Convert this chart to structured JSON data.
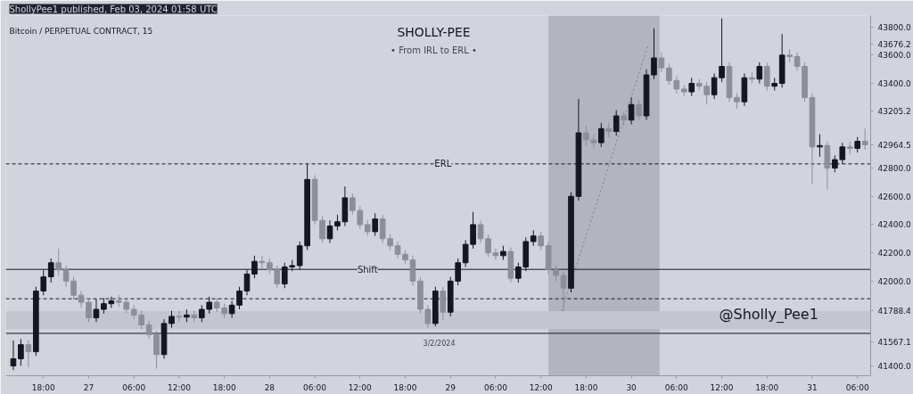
{
  "chart_data": {
    "type": "candlestick",
    "title": "SHOLLY-PEE",
    "subtitle": "• From IRL to ERL •",
    "annotations": [
      "ShollyPee1 published, Feb 03, 2024 01:58 UTC",
      "Bitcoin / PERPETUAL CONTRACT, 15",
      "3/2/2024",
      "@Sholly_Pee1"
    ],
    "x": [
      "2024-01-26T14:00",
      "2024-01-26T15:00",
      "2024-01-26T16:00",
      "2024-01-26T17:00",
      "2024-01-26T18:00",
      "2024-01-26T19:00",
      "2024-01-26T20:00",
      "2024-01-26T21:00",
      "2024-01-26T22:00",
      "2024-01-26T23:00",
      "2024-01-27T00:00",
      "2024-01-27T01:00",
      "2024-01-27T02:00",
      "2024-01-27T03:00",
      "2024-01-27T04:00",
      "2024-01-27T05:00",
      "2024-01-27T06:00",
      "2024-01-27T07:00",
      "2024-01-27T08:00",
      "2024-01-27T09:00",
      "2024-01-27T10:00",
      "2024-01-27T11:00",
      "2024-01-27T12:00",
      "2024-01-27T13:00",
      "2024-01-27T14:00",
      "2024-01-27T15:00",
      "2024-01-27T16:00",
      "2024-01-27T17:00",
      "2024-01-27T18:00",
      "2024-01-27T19:00",
      "2024-01-27T20:00",
      "2024-01-27T21:00",
      "2024-01-27T22:00",
      "2024-01-27T23:00",
      "2024-01-28T00:00",
      "2024-01-28T01:00",
      "2024-01-28T02:00",
      "2024-01-28T03:00",
      "2024-01-28T04:00",
      "2024-01-28T05:00",
      "2024-01-28T06:00",
      "2024-01-28T07:00",
      "2024-01-28T08:00",
      "2024-01-28T09:00",
      "2024-01-28T10:00",
      "2024-01-28T11:00",
      "2024-01-28T12:00",
      "2024-01-28T13:00",
      "2024-01-28T14:00",
      "2024-01-28T15:00",
      "2024-01-28T16:00",
      "2024-01-28T17:00",
      "2024-01-28T18:00",
      "2024-01-28T19:00",
      "2024-01-28T20:00",
      "2024-01-28T21:00",
      "2024-01-28T22:00",
      "2024-01-28T23:00",
      "2024-01-29T00:00",
      "2024-01-29T01:00",
      "2024-01-29T02:00",
      "2024-01-29T03:00",
      "2024-01-29T04:00",
      "2024-01-29T05:00",
      "2024-01-29T06:00",
      "2024-01-29T07:00",
      "2024-01-29T08:00",
      "2024-01-29T09:00",
      "2024-01-29T10:00",
      "2024-01-29T11:00",
      "2024-01-29T12:00",
      "2024-01-29T13:00",
      "2024-01-29T14:00",
      "2024-01-29T15:00",
      "2024-01-29T16:00",
      "2024-01-29T17:00",
      "2024-01-29T18:00",
      "2024-01-29T19:00",
      "2024-01-29T20:00",
      "2024-01-29T21:00",
      "2024-01-29T22:00",
      "2024-01-29T23:00",
      "2024-01-30T00:00",
      "2024-01-30T01:00",
      "2024-01-30T02:00",
      "2024-01-30T03:00",
      "2024-01-30T04:00",
      "2024-01-30T05:00",
      "2024-01-30T06:00",
      "2024-01-30T07:00",
      "2024-01-30T08:00",
      "2024-01-30T09:00",
      "2024-01-30T10:00",
      "2024-01-30T11:00",
      "2024-01-30T12:00",
      "2024-01-30T13:00",
      "2024-01-30T14:00",
      "2024-01-30T15:00",
      "2024-01-30T16:00",
      "2024-01-30T17:00",
      "2024-01-30T18:00",
      "2024-01-30T19:00",
      "2024-01-30T20:00",
      "2024-01-30T21:00",
      "2024-01-30T22:00",
      "2024-01-30T23:00",
      "2024-01-31T00:00",
      "2024-01-31T01:00",
      "2024-01-31T02:00",
      "2024-01-31T03:00",
      "2024-01-31T04:00",
      "2024-01-31T05:00",
      "2024-01-31T06:00",
      "2024-01-31T07:00"
    ],
    "ohlc": [
      [
        41400,
        41580,
        41370,
        41450
      ],
      [
        41450,
        41590,
        41400,
        41550
      ],
      [
        41550,
        41580,
        41390,
        41500
      ],
      [
        41500,
        41960,
        41470,
        41930
      ],
      [
        41930,
        42080,
        41900,
        42030
      ],
      [
        42030,
        42160,
        41990,
        42130
      ],
      [
        42130,
        42230,
        42040,
        42080
      ],
      [
        42080,
        42110,
        41960,
        42000
      ],
      [
        42000,
        42030,
        41870,
        41900
      ],
      [
        41900,
        41930,
        41810,
        41850
      ],
      [
        41850,
        41880,
        41710,
        41740
      ],
      [
        41740,
        41870,
        41710,
        41800
      ],
      [
        41800,
        41880,
        41770,
        41840
      ],
      [
        41840,
        41890,
        41810,
        41860
      ],
      [
        41860,
        41900,
        41820,
        41850
      ],
      [
        41850,
        41880,
        41770,
        41800
      ],
      [
        41800,
        41830,
        41730,
        41760
      ],
      [
        41760,
        41790,
        41660,
        41690
      ],
      [
        41690,
        41720,
        41590,
        41620
      ],
      [
        41620,
        41650,
        41380,
        41480
      ],
      [
        41480,
        41730,
        41450,
        41700
      ],
      [
        41700,
        41790,
        41670,
        41750
      ],
      [
        41750,
        41790,
        41710,
        41745
      ],
      [
        41745,
        41800,
        41710,
        41760
      ],
      [
        41760,
        41790,
        41710,
        41740
      ],
      [
        41740,
        41830,
        41710,
        41800
      ],
      [
        41800,
        41890,
        41770,
        41850
      ],
      [
        41850,
        41880,
        41780,
        41810
      ],
      [
        41810,
        41840,
        41740,
        41770
      ],
      [
        41770,
        41860,
        41740,
        41830
      ],
      [
        41830,
        41960,
        41800,
        41930
      ],
      [
        41930,
        42080,
        41900,
        42050
      ],
      [
        42050,
        42180,
        42020,
        42140
      ],
      [
        42140,
        42180,
        42090,
        42130
      ],
      [
        42130,
        42160,
        42050,
        42080
      ],
      [
        42080,
        42110,
        41950,
        41980
      ],
      [
        41980,
        42130,
        41950,
        42100
      ],
      [
        42100,
        42150,
        42070,
        42110
      ],
      [
        42110,
        42280,
        42080,
        42250
      ],
      [
        42250,
        42830,
        42220,
        42720
      ],
      [
        42720,
        42750,
        42400,
        42430
      ],
      [
        42430,
        42460,
        42270,
        42300
      ],
      [
        42300,
        42430,
        42270,
        42390
      ],
      [
        42390,
        42470,
        42360,
        42420
      ],
      [
        42420,
        42670,
        42390,
        42590
      ],
      [
        42590,
        42620,
        42470,
        42500
      ],
      [
        42500,
        42530,
        42370,
        42400
      ],
      [
        42400,
        42430,
        42320,
        42350
      ],
      [
        42350,
        42480,
        42320,
        42440
      ],
      [
        42440,
        42470,
        42270,
        42300
      ],
      [
        42300,
        42330,
        42220,
        42250
      ],
      [
        42250,
        42280,
        42160,
        42190
      ],
      [
        42190,
        42220,
        42120,
        42150
      ],
      [
        42150,
        42180,
        41970,
        42000
      ],
      [
        42000,
        42030,
        41770,
        41800
      ],
      [
        41800,
        41830,
        41670,
        41700
      ],
      [
        41700,
        41960,
        41680,
        41930
      ],
      [
        41930,
        41960,
        41720,
        41780
      ],
      [
        41780,
        42030,
        41750,
        42000
      ],
      [
        42000,
        42160,
        41970,
        42130
      ],
      [
        42130,
        42290,
        42100,
        42260
      ],
      [
        42260,
        42490,
        42230,
        42400
      ],
      [
        42400,
        42430,
        42270,
        42300
      ],
      [
        42300,
        42330,
        42170,
        42200
      ],
      [
        42200,
        42230,
        42150,
        42180
      ],
      [
        42180,
        42250,
        42150,
        42210
      ],
      [
        42210,
        42240,
        41990,
        42020
      ],
      [
        42020,
        42130,
        41990,
        42100
      ],
      [
        42100,
        42310,
        42070,
        42280
      ],
      [
        42280,
        42360,
        42250,
        42320
      ],
      [
        42320,
        42350,
        42220,
        42250
      ],
      [
        42250,
        42280,
        42050,
        42080
      ],
      [
        42080,
        42110,
        42000,
        42040
      ],
      [
        42040,
        42070,
        41788.4,
        41950
      ],
      [
        41950,
        42630,
        41920,
        42600
      ],
      [
        42600,
        43290,
        42570,
        43050
      ],
      [
        43050,
        43100,
        42960,
        43000
      ],
      [
        43000,
        43040,
        42940,
        42980
      ],
      [
        42980,
        43120,
        42950,
        43080
      ],
      [
        43080,
        43120,
        43020,
        43060
      ],
      [
        43060,
        43210,
        43030,
        43170
      ],
      [
        43170,
        43200,
        43100,
        43140
      ],
      [
        43140,
        43300,
        43110,
        43250
      ],
      [
        43250,
        43280,
        43140,
        43170
      ],
      [
        43170,
        43500,
        43140,
        43460
      ],
      [
        43460,
        43790,
        43430,
        43580
      ],
      [
        43580,
        43620,
        43480,
        43510
      ],
      [
        43510,
        43540,
        43390,
        43420
      ],
      [
        43420,
        43450,
        43330,
        43360
      ],
      [
        43360,
        43390,
        43310,
        43340
      ],
      [
        43340,
        43440,
        43310,
        43400
      ],
      [
        43400,
        43430,
        43350,
        43380
      ],
      [
        43380,
        43410,
        43250,
        43320
      ],
      [
        43320,
        43470,
        43290,
        43440
      ],
      [
        43440,
        43860,
        43410,
        43520
      ],
      [
        43520,
        43550,
        43270,
        43300
      ],
      [
        43300,
        43330,
        43220,
        43270
      ],
      [
        43270,
        43470,
        43240,
        43440
      ],
      [
        43440,
        43480,
        43400,
        43430
      ],
      [
        43430,
        43550,
        43400,
        43520
      ],
      [
        43520,
        43550,
        43350,
        43380
      ],
      [
        43380,
        43440,
        43350,
        43400
      ],
      [
        43400,
        43750,
        43370,
        43600
      ],
      [
        43600,
        43640,
        43550,
        43590
      ],
      [
        43590,
        43620,
        43490,
        43520
      ],
      [
        43520,
        43550,
        43270,
        43300
      ],
      [
        43300,
        43330,
        42690,
        42950
      ],
      [
        42950,
        43040,
        42880,
        42960
      ],
      [
        42960,
        42990,
        42650,
        42800
      ],
      [
        42800,
        42890,
        42770,
        42860
      ],
      [
        42860,
        42980,
        42830,
        42950
      ],
      [
        42950,
        42990,
        42900,
        42940
      ],
      [
        42940,
        43020,
        42910,
        42990
      ],
      [
        42990,
        43080,
        42930,
        42964.5
      ]
    ],
    "colors": [
      "#131722",
      "#131722",
      "#8c8f99",
      "#131722",
      "#131722",
      "#131722",
      "#8c8f99",
      "#8c8f99",
      "#8c8f99",
      "#8c8f99",
      "#8c8f99",
      "#131722",
      "#131722",
      "#131722",
      "#8c8f99",
      "#8c8f99",
      "#8c8f99",
      "#8c8f99",
      "#8c8f99",
      "#8c8f99",
      "#131722",
      "#131722",
      "#8c8f99",
      "#131722",
      "#8c8f99",
      "#131722",
      "#131722",
      "#8c8f99",
      "#8c8f99",
      "#131722",
      "#131722",
      "#131722",
      "#131722",
      "#8c8f99",
      "#8c8f99",
      "#8c8f99",
      "#131722",
      "#131722",
      "#131722",
      "#131722",
      "#8c8f99",
      "#8c8f99",
      "#131722",
      "#131722",
      "#131722",
      "#8c8f99",
      "#8c8f99",
      "#8c8f99",
      "#131722",
      "#8c8f99",
      "#8c8f99",
      "#8c8f99",
      "#8c8f99",
      "#8c8f99",
      "#8c8f99",
      "#8c8f99",
      "#131722",
      "#8c8f99",
      "#131722",
      "#131722",
      "#131722",
      "#131722",
      "#8c8f99",
      "#8c8f99",
      "#8c8f99",
      "#131722",
      "#8c8f99",
      "#131722",
      "#131722",
      "#131722",
      "#8c8f99",
      "#8c8f99",
      "#8c8f99",
      "#8c8f99",
      "#131722",
      "#131722",
      "#8c8f99",
      "#8c8f99",
      "#131722",
      "#8c8f99",
      "#131722",
      "#8c8f99",
      "#131722",
      "#8c8f99",
      "#131722",
      "#131722",
      "#8c8f99",
      "#8c8f99",
      "#8c8f99",
      "#8c8f99",
      "#131722",
      "#8c8f99",
      "#8c8f99",
      "#131722",
      "#131722",
      "#8c8f99",
      "#8c8f99",
      "#131722",
      "#8c8f99",
      "#131722",
      "#8c8f99",
      "#131722",
      "#131722",
      "#8c8f99",
      "#8c8f99",
      "#8c8f99",
      "#8c8f99",
      "#131722",
      "#8c8f99",
      "#131722",
      "#131722",
      "#8c8f99",
      "#131722",
      "#8c8f99"
    ],
    "series": [
      {
        "type": "line",
        "x": [
          "2024-01-29T14:45",
          "2024-01-30T02:15"
        ],
        "values": [
          41788.4,
          43676.2
        ],
        "color": "#787b86",
        "line_style": "dotted"
      }
    ],
    "ref_lines": [
      {
        "axis": "y",
        "value": 42830,
        "label": "ERL",
        "color": "#131722",
        "line_style": "dashed"
      },
      {
        "axis": "y",
        "value": 42083,
        "label": "Shift",
        "color": "#131722",
        "line_style": "solid"
      },
      {
        "axis": "y",
        "value": 41875,
        "color": "#131722",
        "line_style": "dashed"
      },
      {
        "axis": "y",
        "value": 41630,
        "color": "#131722",
        "line_style": "solid"
      }
    ],
    "bands": [
      {
        "axis": "x",
        "from": "2024-01-29T13:00",
        "to": "2024-01-30T03:45",
        "color": "#b2b5be"
      },
      {
        "axis": "y",
        "from": 41660,
        "to": 41788.4,
        "color": "#c3c6ce"
      }
    ],
    "xlim": [
      "2024-01-26T13:00",
      "2024-01-31T07:45"
    ],
    "xticks": [
      {
        "value": "2024-01-26T18:00",
        "label": "18:00"
      },
      {
        "value": "2024-01-27T00:00",
        "label": "27"
      },
      {
        "value": "2024-01-27T06:00",
        "label": "06:00"
      },
      {
        "value": "2024-01-27T12:00",
        "label": "12:00"
      },
      {
        "value": "2024-01-27T18:00",
        "label": "18:00"
      },
      {
        "value": "2024-01-28T00:00",
        "label": "28"
      },
      {
        "value": "2024-01-28T06:00",
        "label": "06:00"
      },
      {
        "value": "2024-01-28T12:00",
        "label": "12:00"
      },
      {
        "value": "2024-01-28T18:00",
        "label": "18:00"
      },
      {
        "value": "2024-01-29T00:00",
        "label": "29"
      },
      {
        "value": "2024-01-29T06:00",
        "label": "06:00"
      },
      {
        "value": "2024-01-29T12:00",
        "label": "12:00"
      },
      {
        "value": "2024-01-29T18:00",
        "label": "18:00"
      },
      {
        "value": "2024-01-30T00:00",
        "label": "30"
      },
      {
        "value": "2024-01-30T06:00",
        "label": "06:00"
      },
      {
        "value": "2024-01-30T12:00",
        "label": "12:00"
      },
      {
        "value": "2024-01-30T18:00",
        "label": "18:00"
      },
      {
        "value": "2024-01-31T00:00",
        "label": "31"
      },
      {
        "value": "2024-01-31T06:00",
        "label": "06:00"
      }
    ],
    "ylim": [
      41330,
      43880
    ],
    "yticks": [
      {
        "value": 41400,
        "label": "41400.0"
      },
      {
        "value": 41567.1,
        "label": "41567.1"
      },
      {
        "value": 41788.4,
        "label": "41788.4"
      },
      {
        "value": 42000,
        "label": "42000.0"
      },
      {
        "value": 42200,
        "label": "42200.0"
      },
      {
        "value": 42400,
        "label": "42400.0"
      },
      {
        "value": 42600,
        "label": "42600.0"
      },
      {
        "value": 42800,
        "label": "42800.0"
      },
      {
        "value": 42964.5,
        "label": "42964.5"
      },
      {
        "value": 43205.2,
        "label": "43205.2"
      },
      {
        "value": 43400,
        "label": "43400.0"
      },
      {
        "value": 43600,
        "label": "43600.0"
      },
      {
        "value": 43676.2,
        "label": "43676.2"
      },
      {
        "value": 43800,
        "label": "43800.0"
      }
    ]
  }
}
